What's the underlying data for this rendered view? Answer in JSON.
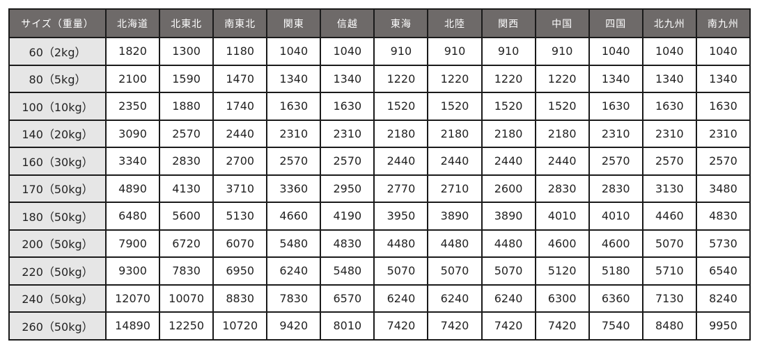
{
  "table": {
    "header_size": "サイズ（重量）",
    "regions": [
      "北海道",
      "北東北",
      "南東北",
      "関東",
      "信越",
      "東海",
      "北陸",
      "関西",
      "中国",
      "四国",
      "北九州",
      "南九州"
    ],
    "rows": [
      {
        "size": "60（2kg）",
        "prices": [
          "1820",
          "1300",
          "1180",
          "1040",
          "1040",
          "910",
          "910",
          "910",
          "910",
          "1040",
          "1040",
          "1040"
        ]
      },
      {
        "size": "80（5kg）",
        "prices": [
          "2100",
          "1590",
          "1470",
          "1340",
          "1340",
          "1220",
          "1220",
          "1220",
          "1220",
          "1340",
          "1340",
          "1340"
        ]
      },
      {
        "size": "100（10kg）",
        "prices": [
          "2350",
          "1880",
          "1740",
          "1630",
          "1630",
          "1520",
          "1520",
          "1520",
          "1520",
          "1630",
          "1630",
          "1630"
        ]
      },
      {
        "size": "140（20kg）",
        "prices": [
          "3090",
          "2570",
          "2440",
          "2310",
          "2310",
          "2180",
          "2180",
          "2180",
          "2180",
          "2310",
          "2310",
          "2310"
        ]
      },
      {
        "size": "160（30kg）",
        "prices": [
          "3340",
          "2830",
          "2700",
          "2570",
          "2570",
          "2440",
          "2440",
          "2440",
          "2440",
          "2570",
          "2570",
          "2570"
        ]
      },
      {
        "size": "170（50kg）",
        "prices": [
          "4890",
          "4130",
          "3710",
          "3360",
          "2950",
          "2770",
          "2710",
          "2600",
          "2830",
          "2830",
          "3130",
          "3480"
        ]
      },
      {
        "size": "180（50kg）",
        "prices": [
          "6480",
          "5600",
          "5130",
          "4660",
          "4190",
          "3950",
          "3890",
          "3890",
          "4010",
          "4010",
          "4460",
          "4830"
        ]
      },
      {
        "size": "200（50kg）",
        "prices": [
          "7900",
          "6720",
          "6070",
          "5480",
          "4830",
          "4480",
          "4480",
          "4480",
          "4600",
          "4600",
          "5070",
          "5730"
        ]
      },
      {
        "size": "220（50kg）",
        "prices": [
          "9300",
          "7830",
          "6950",
          "6240",
          "5480",
          "5070",
          "5070",
          "5070",
          "5120",
          "5180",
          "5710",
          "6540"
        ]
      },
      {
        "size": "240（50kg）",
        "prices": [
          "12070",
          "10070",
          "8830",
          "7830",
          "6570",
          "6240",
          "6240",
          "6240",
          "6300",
          "6360",
          "7130",
          "8240"
        ]
      },
      {
        "size": "260（50kg）",
        "prices": [
          "14890",
          "12250",
          "10720",
          "9420",
          "8010",
          "7420",
          "7420",
          "7420",
          "7420",
          "7540",
          "8480",
          "9950"
        ]
      }
    ]
  },
  "colors": {
    "header_bg": "#6e6a69",
    "size_column_bg": "#e6e6e6",
    "border": "#1a1a1a"
  }
}
